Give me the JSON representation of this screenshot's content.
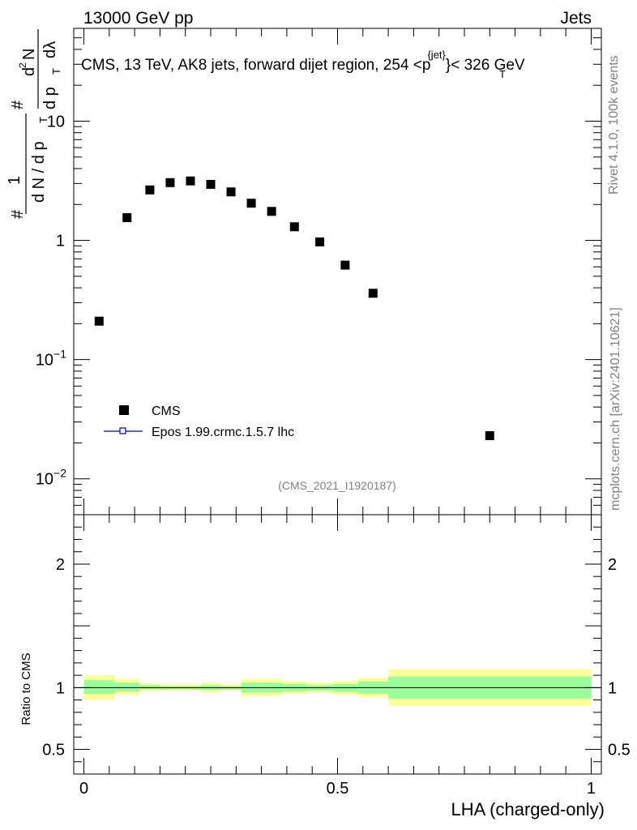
{
  "header": {
    "energy_label": "13000 GeV pp",
    "category_label": "Jets"
  },
  "plot_title": {
    "main": "CMS, 13 TeV, AK8 jets, forward dijet region, 254 <",
    "p": "p",
    "T": "T",
    "jet_sup": "{jet}",
    "tail": "}< 326 GeV"
  },
  "side_labels": {
    "rivet": "Rivet 4.1.0,  100k events",
    "mcplots": "mcplots.cern.ch [arXiv:2401.10621]"
  },
  "watermark": "(CMS_2021_I1920187)",
  "y_axis_main": {
    "hash": "#",
    "one": "1",
    "dN": "d N / d p",
    "T": "T",
    "d2N": "d",
    "two": "2",
    "N": "N",
    "dpT_dlambda": "d p",
    "dlambda": "dλ"
  },
  "legend": {
    "entries": [
      {
        "label": "CMS",
        "marker": "square-marker",
        "color": "#000000"
      },
      {
        "label": "Epos 1.99.crmc.1.5.7 lhc",
        "marker": "line-marker",
        "color": "#0000cc"
      }
    ]
  },
  "ratio_ylabel": "Ratio to CMS",
  "x_axis_label": "LHA (charged-only)",
  "chart_data": [
    {
      "type": "scatter",
      "panel": "main",
      "yscale": "log",
      "ylim": [
        0.005,
        60
      ],
      "xlim": [
        -0.02,
        1.02
      ],
      "series": [
        {
          "name": "CMS",
          "x": [
            0.03,
            0.085,
            0.13,
            0.17,
            0.21,
            0.25,
            0.29,
            0.33,
            0.37,
            0.415,
            0.465,
            0.515,
            0.57,
            0.8
          ],
          "y": [
            0.21,
            1.55,
            2.65,
            3.05,
            3.15,
            2.95,
            2.55,
            2.05,
            1.75,
            1.3,
            0.97,
            0.62,
            0.36,
            0.023
          ]
        }
      ],
      "yticks": [
        {
          "value": 0.01,
          "base": "10",
          "exp": "−2"
        },
        {
          "value": 0.1,
          "base": "10",
          "exp": "−1"
        },
        {
          "value": 1,
          "base": "1",
          "exp": ""
        },
        {
          "value": 10,
          "base": "10",
          "exp": ""
        }
      ]
    },
    {
      "type": "area",
      "panel": "ratio",
      "ylim": [
        0.3,
        2.4
      ],
      "xlim": [
        -0.02,
        1.02
      ],
      "reference_line": 1.0,
      "bins": [
        {
          "x0": 0.0,
          "x1": 0.06,
          "inner": [
            0.95,
            1.06
          ],
          "outer": [
            0.9,
            1.1
          ]
        },
        {
          "x0": 0.06,
          "x1": 0.11,
          "inner": [
            0.97,
            1.04
          ],
          "outer": [
            0.94,
            1.07
          ]
        },
        {
          "x0": 0.11,
          "x1": 0.15,
          "inner": [
            0.985,
            1.02
          ],
          "outer": [
            0.97,
            1.035
          ]
        },
        {
          "x0": 0.15,
          "x1": 0.23,
          "inner": [
            0.985,
            1.01
          ],
          "outer": [
            0.975,
            1.025
          ]
        },
        {
          "x0": 0.23,
          "x1": 0.27,
          "inner": [
            0.98,
            1.02
          ],
          "outer": [
            0.96,
            1.04
          ]
        },
        {
          "x0": 0.27,
          "x1": 0.31,
          "inner": [
            0.985,
            1.01
          ],
          "outer": [
            0.975,
            1.025
          ]
        },
        {
          "x0": 0.31,
          "x1": 0.39,
          "inner": [
            0.96,
            1.04
          ],
          "outer": [
            0.93,
            1.07
          ]
        },
        {
          "x0": 0.39,
          "x1": 0.44,
          "inner": [
            0.97,
            1.03
          ],
          "outer": [
            0.95,
            1.05
          ]
        },
        {
          "x0": 0.44,
          "x1": 0.49,
          "inner": [
            0.975,
            1.02
          ],
          "outer": [
            0.96,
            1.04
          ]
        },
        {
          "x0": 0.49,
          "x1": 0.54,
          "inner": [
            0.965,
            1.03
          ],
          "outer": [
            0.94,
            1.055
          ]
        },
        {
          "x0": 0.54,
          "x1": 0.6,
          "inner": [
            0.95,
            1.05
          ],
          "outer": [
            0.92,
            1.08
          ]
        },
        {
          "x0": 0.6,
          "x1": 1.0,
          "inner": [
            0.91,
            1.09
          ],
          "outer": [
            0.85,
            1.15
          ]
        }
      ],
      "yticks": [
        {
          "value": 0.5,
          "label": "0.5"
        },
        {
          "value": 1,
          "label": "1"
        },
        {
          "value": 2,
          "label": "2"
        }
      ],
      "xticks": [
        {
          "value": 0,
          "label": "0"
        },
        {
          "value": 0.5,
          "label": "0.5"
        },
        {
          "value": 1,
          "label": "1"
        }
      ]
    }
  ],
  "colors": {
    "inner_band": "#99ff99",
    "outer_band": "#ffff99",
    "data": "#000000",
    "mc_line": "#0000cc"
  }
}
